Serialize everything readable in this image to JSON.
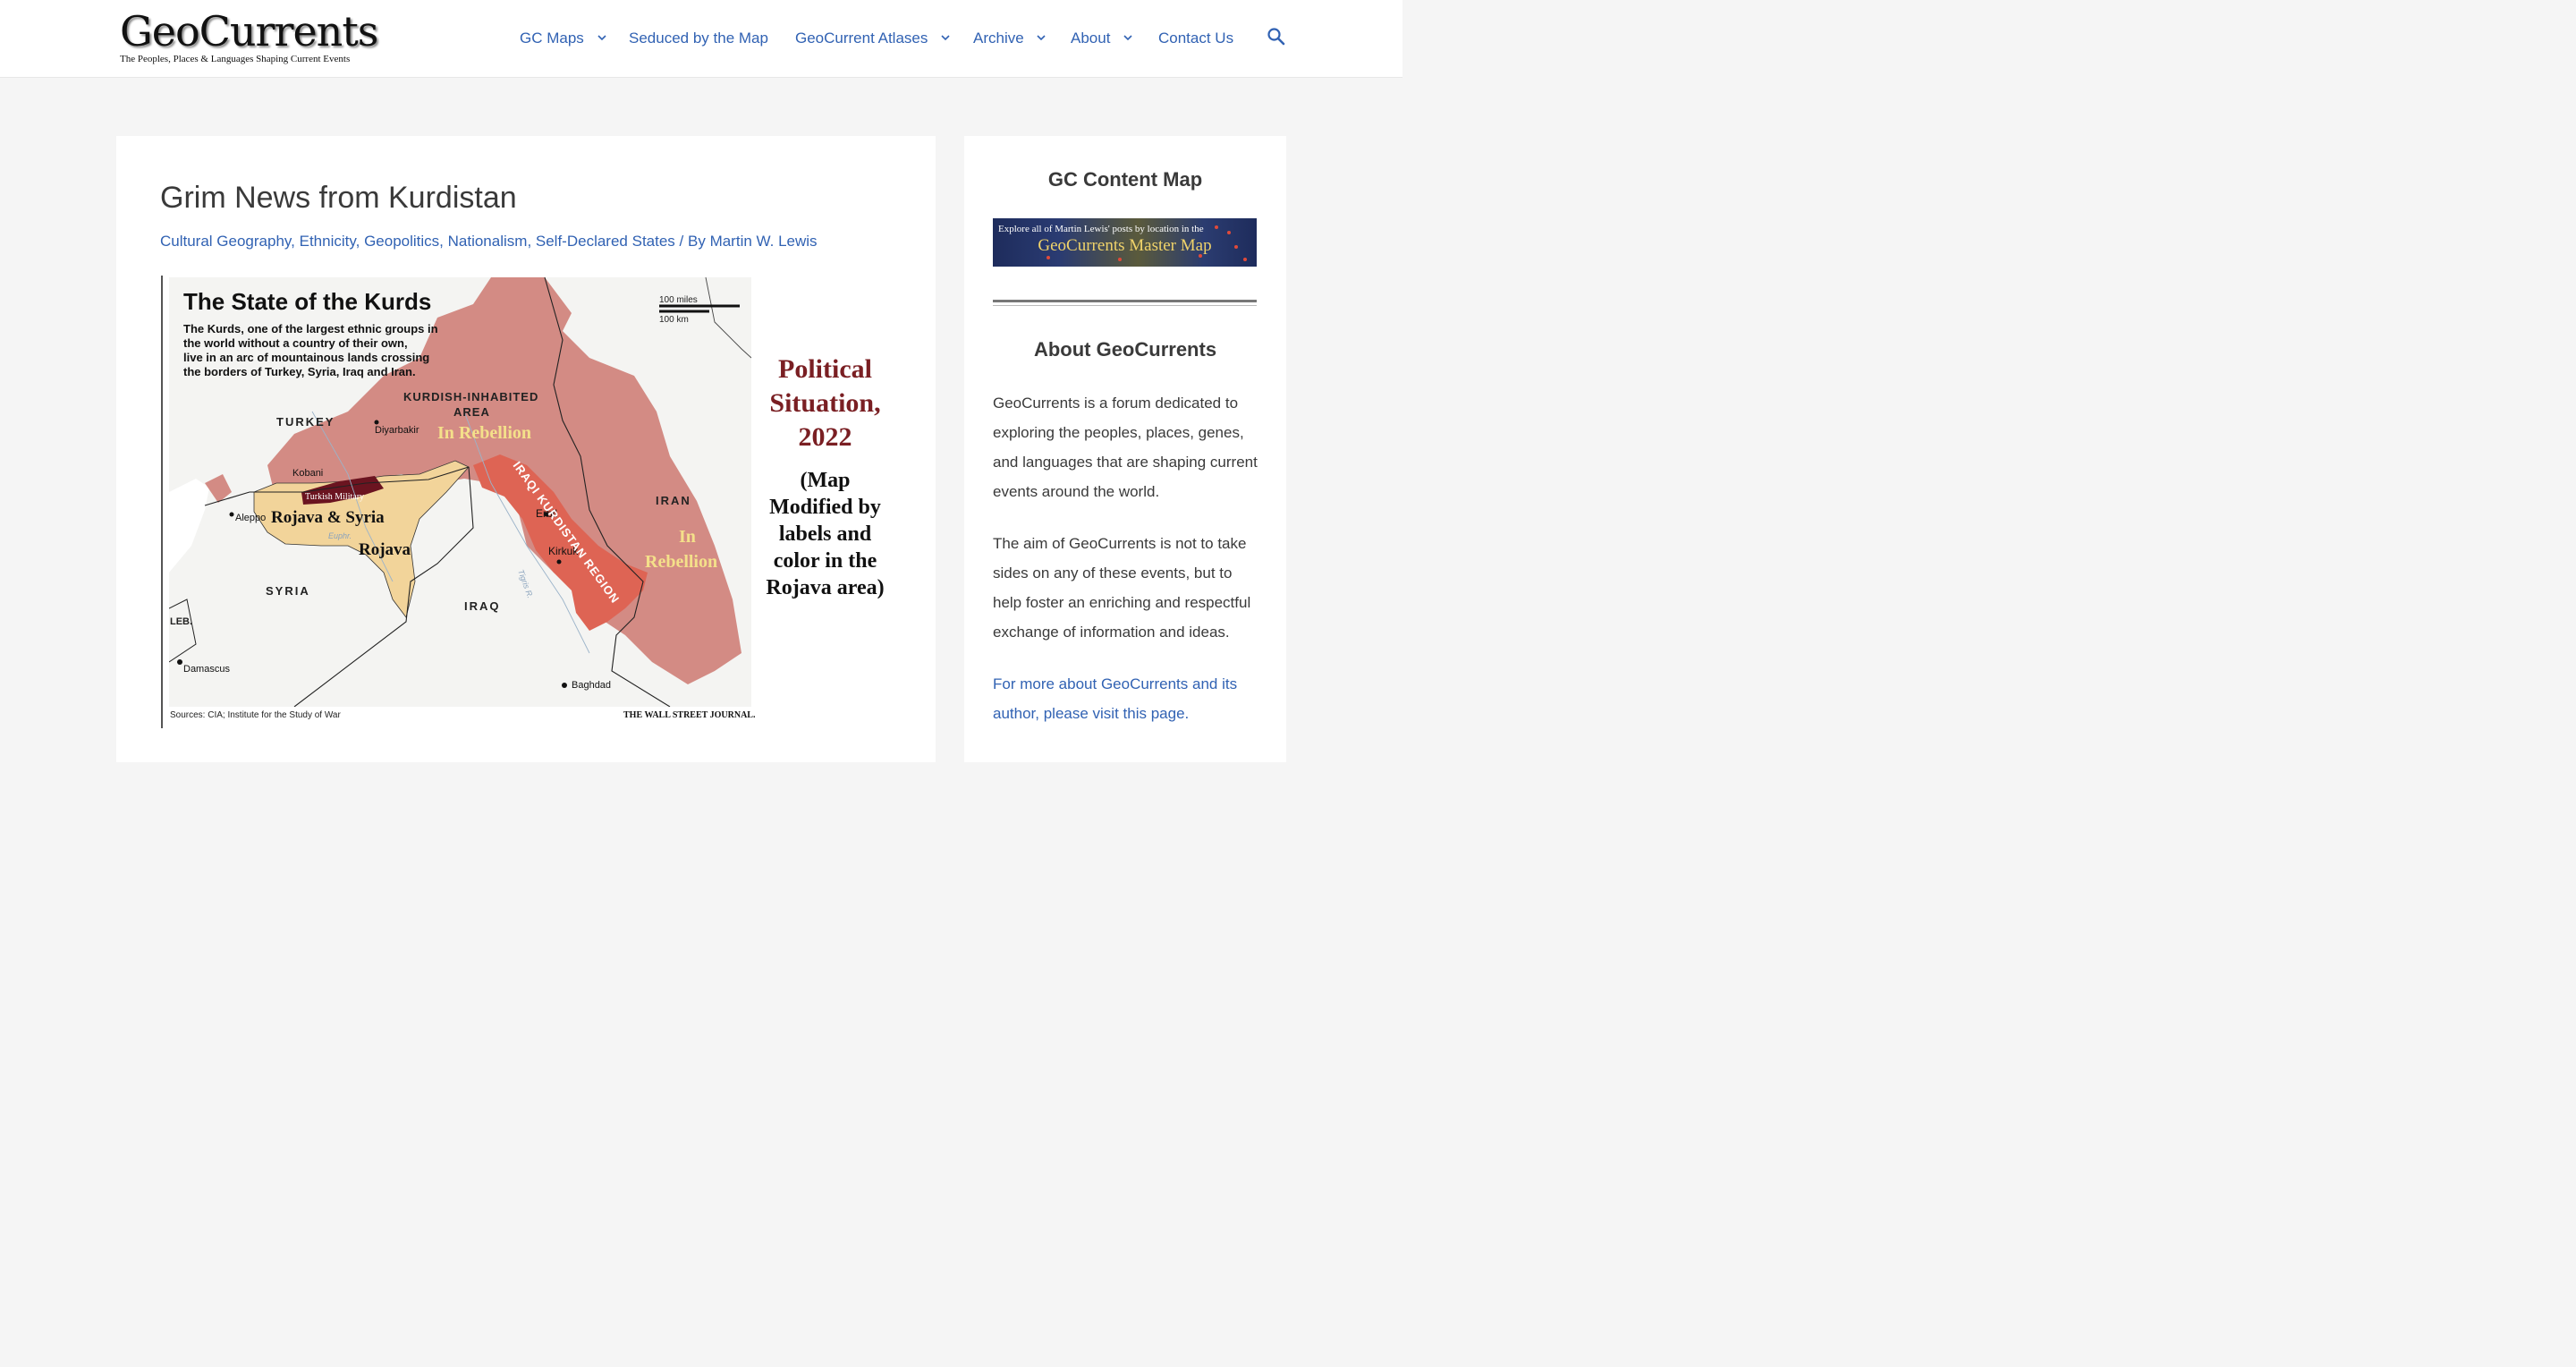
{
  "header": {
    "logo_title": "GeoCurrents",
    "logo_tagline": "The Peoples, Places & Languages Shaping Current Events",
    "nav": [
      {
        "label": "GC Maps",
        "has_dropdown": true
      },
      {
        "label": "Seduced by the Map",
        "has_dropdown": false
      },
      {
        "label": "GeoCurrent Atlases",
        "has_dropdown": true
      },
      {
        "label": "Archive",
        "has_dropdown": true
      },
      {
        "label": "About",
        "has_dropdown": true
      },
      {
        "label": "Contact Us",
        "has_dropdown": false
      }
    ],
    "search_icon": "search-icon"
  },
  "article": {
    "title": "Grim News from Kurdistan",
    "categories": [
      "Cultural Geography",
      "Ethnicity",
      "Geopolitics",
      "Nationalism",
      "Self-Declared States"
    ],
    "byline_prefix": "/ By",
    "author": "Martin W. Lewis",
    "figure": {
      "map_title": "The State of the Kurds",
      "map_desc": [
        "The Kurds, one of the largest ethnic groups in",
        "the world without a country of their own,",
        "live in an arc of mountainous lands crossing",
        "the borders of Turkey, Syria, Iraq and Iran."
      ],
      "scale_miles": "100 miles",
      "scale_km": "100 km",
      "area_label": [
        "KURDISH-INHABITED",
        "AREA"
      ],
      "rebellion_label": "In Rebellion",
      "rebellion_label_iran": [
        "In",
        "Rebellion"
      ],
      "countries": {
        "turkey": "TURKEY",
        "syria": "SYRIA",
        "iraq": "IRAQ",
        "iran": "IRAN",
        "lebanon": "LEB."
      },
      "cities": {
        "diyarbakir": "Diyarbakir",
        "kobani": "Kobani",
        "aleppo": "Aleppo",
        "erbil": "Erbil",
        "kirkuk": "Kirkuk",
        "damascus": "Damascus",
        "baghdad": "Baghdad"
      },
      "region_iraqi": "IRAQI KURDISTAN REGION",
      "turkish_military": "Turkish Military",
      "rojava_syria": "Rojava & Syria",
      "rojava": "Rojava",
      "river_tigris": "Tigris R.",
      "river_euphrates": "Euphr.",
      "source": "Sources: CIA; Institute for the Study of War",
      "publisher": "THE WALL STREET JOURNAL.",
      "annotation_title": [
        "Political",
        "Situation,",
        "2022"
      ],
      "annotation_note": [
        "(Map",
        "Modified by",
        "labels and",
        "color in the",
        "Rojava area)"
      ]
    }
  },
  "sidebar": {
    "content_map_heading": "GC Content Map",
    "banner_top_text": "Explore all of Martin Lewis' posts by location in the",
    "banner_main_text": "GeoCurrents Master Map",
    "about_heading": "About GeoCurrents",
    "about_p1": "GeoCurrents is a forum dedicated to exploring the peoples, places, genes, and languages that are shaping current events around the world.",
    "about_p2": "The aim of GeoCurrents is not to take sides on any of these events, but to help foster an enriching and respectful exchange of information and ideas.",
    "about_link": "For more about GeoCurrents and its author, please visit this page."
  },
  "colors": {
    "link": "#3162b3",
    "background": "#f5f5f5",
    "card": "#ffffff",
    "kurdish_area": "#cf8078",
    "iraqi_kurdistan": "#de6454",
    "rojava": "#f2d49a",
    "turkish_military": "#6b1420",
    "annotation_red": "#7a1f23",
    "rebellion_yellow": "#f4e08a"
  }
}
